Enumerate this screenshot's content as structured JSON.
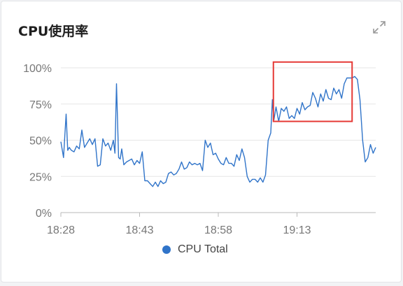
{
  "widget": {
    "title": "CPU使用率",
    "expand_icon": "expand-arrows-icon"
  },
  "chart_data": {
    "type": "line",
    "title": "CPU使用率",
    "xlabel": "",
    "ylabel": "",
    "y_ticks": [
      "0%",
      "25%",
      "50%",
      "75%",
      "100%"
    ],
    "x_ticks": [
      "18:28",
      "18:43",
      "18:58",
      "19:13"
    ],
    "ylim": [
      0,
      100
    ],
    "grid": "horizontal",
    "legend_position": "bottom",
    "highlight": {
      "x_from_minute": 40.5,
      "x_to_minute": 55.5,
      "y_from": 63,
      "y_to": 104,
      "color": "#e53935"
    },
    "series": [
      {
        "name": "CPU Total",
        "color": "#3074c9",
        "x_minutes": [
          0,
          0.5,
          1,
          1.3,
          1.6,
          2,
          2.5,
          3,
          3.5,
          4,
          4.5,
          5,
          5.5,
          6,
          6.5,
          7,
          7.5,
          8,
          8.5,
          9,
          9.5,
          10,
          10.3,
          10.6,
          11,
          11.3,
          11.6,
          12,
          12.5,
          13,
          13.5,
          14,
          14.5,
          15,
          15.5,
          16,
          16.5,
          17,
          17.5,
          18,
          18.5,
          19,
          19.5,
          20,
          20.5,
          21,
          21.5,
          22,
          22.5,
          23,
          23.5,
          24,
          24.5,
          25,
          25.5,
          26,
          26.5,
          27,
          27.5,
          28,
          28.5,
          29,
          29.5,
          30,
          30.5,
          31,
          31.5,
          32,
          32.5,
          33,
          33.5,
          34,
          34.5,
          35,
          35.5,
          36,
          36.5,
          37,
          37.5,
          38,
          38.5,
          39,
          39.5,
          40,
          40.3,
          40.6,
          41,
          41.5,
          42,
          42.5,
          43,
          43.5,
          44,
          44.5,
          45,
          45.5,
          46,
          46.5,
          47,
          47.5,
          48,
          48.5,
          49,
          49.5,
          50,
          50.5,
          51,
          51.5,
          52,
          52.5,
          53,
          53.5,
          54,
          54.5,
          55,
          55.5,
          56,
          56.5,
          57,
          57.5,
          58,
          58.5,
          59,
          59.5,
          60
        ],
        "values": [
          49,
          38,
          68,
          43,
          45,
          43,
          42,
          46,
          44,
          57,
          45,
          48,
          51,
          47,
          51,
          32,
          33,
          51,
          46,
          48,
          43,
          50,
          41,
          89,
          38,
          37,
          44,
          33,
          35,
          36,
          37,
          33,
          36,
          34,
          42,
          22,
          22,
          20,
          18,
          21,
          18,
          22,
          20,
          21,
          27,
          28,
          26,
          27,
          30,
          35,
          30,
          31,
          35,
          33,
          34,
          33,
          34,
          29,
          50,
          45,
          48,
          40,
          41,
          37,
          34,
          33,
          38,
          34,
          34,
          32,
          40,
          36,
          44,
          38,
          25,
          21,
          23,
          23,
          21,
          24,
          21,
          26,
          50,
          55,
          78,
          64,
          73,
          63,
          72,
          70,
          73,
          65,
          67,
          65,
          72,
          68,
          76,
          71,
          73,
          74,
          83,
          79,
          73,
          82,
          77,
          85,
          79,
          78,
          86,
          82,
          85,
          79,
          89,
          93,
          93,
          93,
          94,
          92,
          78,
          50,
          35,
          38,
          47,
          41,
          45
        ]
      }
    ]
  }
}
